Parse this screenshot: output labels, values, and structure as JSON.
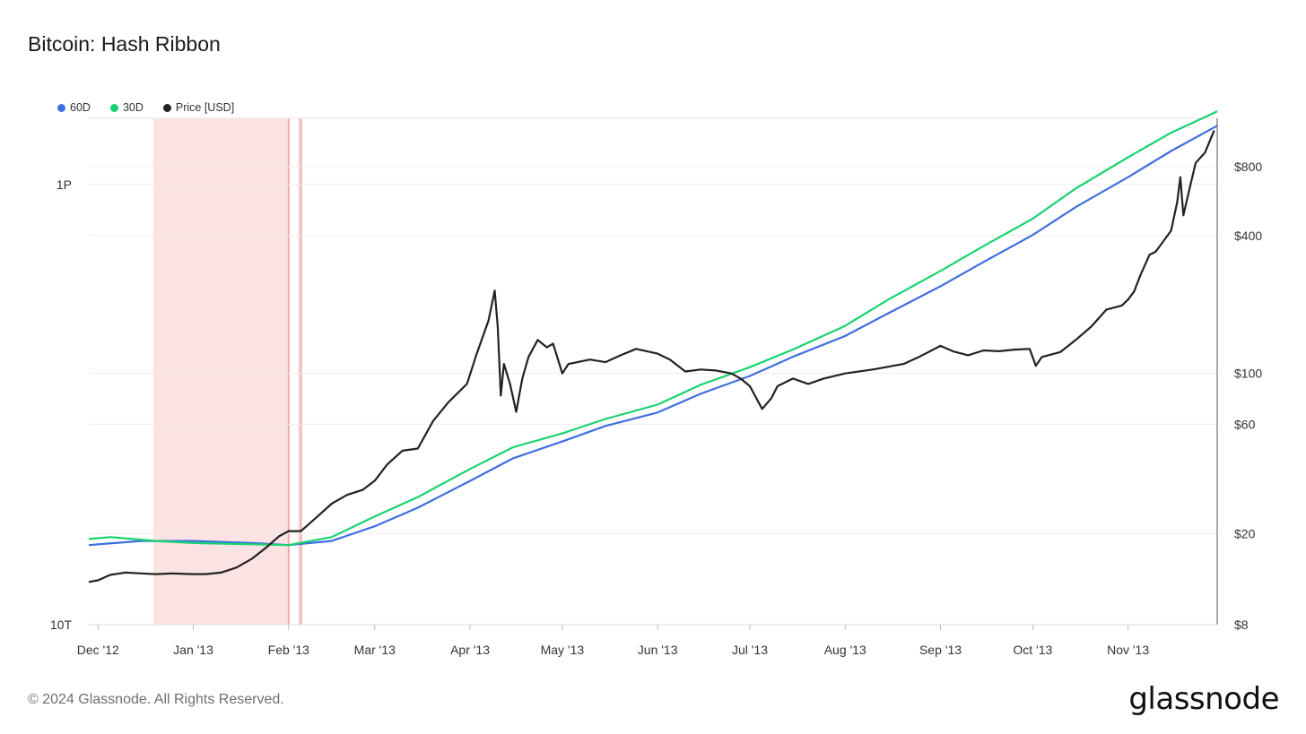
{
  "title": "Bitcoin: Hash Ribbon",
  "legend": [
    {
      "name": "60D",
      "color": "#3e6fe0"
    },
    {
      "name": "30D",
      "color": "#19d36f"
    },
    {
      "name": "Price [USD]",
      "color": "#222222"
    }
  ],
  "footer": {
    "copyright": "© 2024 Glassnode. All Rights Reserved.",
    "logo": "glassnode"
  },
  "chart_data": {
    "type": "line",
    "title": "Bitcoin: Hash Ribbon",
    "x_range": [
      "2012-11-28",
      "2013-11-30"
    ],
    "x_ticks": [
      {
        "date": "2012-12-01",
        "label": "Dec '12"
      },
      {
        "date": "2013-01-01",
        "label": "Jan '13"
      },
      {
        "date": "2013-02-01",
        "label": "Feb '13"
      },
      {
        "date": "2013-03-01",
        "label": "Mar '13"
      },
      {
        "date": "2013-04-01",
        "label": "Apr '13"
      },
      {
        "date": "2013-05-01",
        "label": "May '13"
      },
      {
        "date": "2013-06-01",
        "label": "Jun '13"
      },
      {
        "date": "2013-07-01",
        "label": "Jul '13"
      },
      {
        "date": "2013-08-01",
        "label": "Aug '13"
      },
      {
        "date": "2013-09-01",
        "label": "Sep '13"
      },
      {
        "date": "2013-10-01",
        "label": "Oct '13"
      },
      {
        "date": "2013-11-01",
        "label": "Nov '13"
      }
    ],
    "left_axis": {
      "scale": "log",
      "range": [
        10,
        2000
      ],
      "unit": "TH/s",
      "ticks": [
        {
          "value": 10,
          "label": "10T"
        },
        {
          "value": 1000,
          "label": "1P"
        }
      ]
    },
    "right_axis": {
      "scale": "log",
      "range": [
        8,
        1300
      ],
      "ticks": [
        {
          "value": 8,
          "label": "$8"
        },
        {
          "value": 20,
          "label": "$20"
        },
        {
          "value": 60,
          "label": "$60"
        },
        {
          "value": 100,
          "label": "$100"
        },
        {
          "value": 400,
          "label": "$400"
        },
        {
          "value": 800,
          "label": "$800"
        }
      ]
    },
    "capitulation_bands": [
      {
        "start": "2012-12-19",
        "end": "2013-02-01"
      },
      {
        "start": "2013-02-04",
        "end": "2013-02-05"
      }
    ],
    "series": [
      {
        "name": "60D",
        "axis": "left",
        "color": "#3e6fe0",
        "points": [
          [
            "2012-11-28",
            23
          ],
          [
            "2012-12-15",
            24
          ],
          [
            "2013-01-01",
            24
          ],
          [
            "2013-01-20",
            23.5
          ],
          [
            "2013-02-01",
            23
          ],
          [
            "2013-02-15",
            24
          ],
          [
            "2013-03-01",
            28
          ],
          [
            "2013-03-15",
            34
          ],
          [
            "2013-04-01",
            45
          ],
          [
            "2013-04-15",
            57
          ],
          [
            "2013-05-01",
            68
          ],
          [
            "2013-05-15",
            80
          ],
          [
            "2013-06-01",
            92
          ],
          [
            "2013-06-15",
            112
          ],
          [
            "2013-07-01",
            135
          ],
          [
            "2013-07-15",
            165
          ],
          [
            "2013-08-01",
            205
          ],
          [
            "2013-08-15",
            260
          ],
          [
            "2013-09-01",
            345
          ],
          [
            "2013-09-15",
            445
          ],
          [
            "2013-10-01",
            590
          ],
          [
            "2013-10-15",
            790
          ],
          [
            "2013-11-01",
            1080
          ],
          [
            "2013-11-15",
            1420
          ],
          [
            "2013-11-30",
            1850
          ]
        ]
      },
      {
        "name": "30D",
        "axis": "left",
        "color": "#19d36f",
        "points": [
          [
            "2012-11-28",
            24.5
          ],
          [
            "2012-12-05",
            25
          ],
          [
            "2012-12-20",
            24
          ],
          [
            "2013-01-01",
            23.5
          ],
          [
            "2013-01-20",
            23.2
          ],
          [
            "2013-02-01",
            23
          ],
          [
            "2013-02-15",
            25
          ],
          [
            "2013-03-01",
            31
          ],
          [
            "2013-03-15",
            38
          ],
          [
            "2013-04-01",
            51
          ],
          [
            "2013-04-15",
            64
          ],
          [
            "2013-05-01",
            74
          ],
          [
            "2013-05-15",
            86
          ],
          [
            "2013-06-01",
            100
          ],
          [
            "2013-06-15",
            123
          ],
          [
            "2013-07-01",
            148
          ],
          [
            "2013-07-15",
            178
          ],
          [
            "2013-08-01",
            228
          ],
          [
            "2013-08-15",
            300
          ],
          [
            "2013-09-01",
            405
          ],
          [
            "2013-09-15",
            525
          ],
          [
            "2013-10-01",
            700
          ],
          [
            "2013-10-15",
            960
          ],
          [
            "2013-11-01",
            1330
          ],
          [
            "2013-11-15",
            1720
          ],
          [
            "2013-11-30",
            2150
          ]
        ]
      },
      {
        "name": "Price [USD]",
        "axis": "right",
        "color": "#222222",
        "points": [
          [
            "2012-11-28",
            12.3
          ],
          [
            "2012-12-01",
            12.5
          ],
          [
            "2012-12-05",
            13.2
          ],
          [
            "2012-12-10",
            13.5
          ],
          [
            "2012-12-15",
            13.4
          ],
          [
            "2012-12-20",
            13.3
          ],
          [
            "2012-12-25",
            13.4
          ],
          [
            "2013-01-01",
            13.3
          ],
          [
            "2013-01-05",
            13.3
          ],
          [
            "2013-01-10",
            13.5
          ],
          [
            "2013-01-15",
            14.2
          ],
          [
            "2013-01-20",
            15.5
          ],
          [
            "2013-01-25",
            17.5
          ],
          [
            "2013-01-29",
            19.5
          ],
          [
            "2013-02-01",
            20.5
          ],
          [
            "2013-02-05",
            20.5
          ],
          [
            "2013-02-10",
            23.5
          ],
          [
            "2013-02-15",
            27
          ],
          [
            "2013-02-20",
            29.5
          ],
          [
            "2013-02-25",
            31
          ],
          [
            "2013-03-01",
            34
          ],
          [
            "2013-03-05",
            40
          ],
          [
            "2013-03-10",
            46
          ],
          [
            "2013-03-15",
            47
          ],
          [
            "2013-03-20",
            62
          ],
          [
            "2013-03-25",
            75
          ],
          [
            "2013-03-31",
            90
          ],
          [
            "2013-04-03",
            120
          ],
          [
            "2013-04-07",
            170
          ],
          [
            "2013-04-09",
            230
          ],
          [
            "2013-04-10",
            160
          ],
          [
            "2013-04-11",
            80
          ],
          [
            "2013-04-12",
            110
          ],
          [
            "2013-04-14",
            90
          ],
          [
            "2013-04-16",
            68
          ],
          [
            "2013-04-18",
            95
          ],
          [
            "2013-04-20",
            118
          ],
          [
            "2013-04-23",
            140
          ],
          [
            "2013-04-26",
            130
          ],
          [
            "2013-04-28",
            135
          ],
          [
            "2013-05-01",
            100
          ],
          [
            "2013-05-03",
            110
          ],
          [
            "2013-05-10",
            115
          ],
          [
            "2013-05-15",
            112
          ],
          [
            "2013-05-20",
            120
          ],
          [
            "2013-05-25",
            128
          ],
          [
            "2013-06-01",
            122
          ],
          [
            "2013-06-05",
            115
          ],
          [
            "2013-06-10",
            102
          ],
          [
            "2013-06-15",
            104
          ],
          [
            "2013-06-20",
            103
          ],
          [
            "2013-06-25",
            100
          ],
          [
            "2013-06-28",
            95
          ],
          [
            "2013-07-01",
            88
          ],
          [
            "2013-07-05",
            70
          ],
          [
            "2013-07-08",
            78
          ],
          [
            "2013-07-10",
            88
          ],
          [
            "2013-07-15",
            95
          ],
          [
            "2013-07-20",
            90
          ],
          [
            "2013-07-25",
            95
          ],
          [
            "2013-08-01",
            100
          ],
          [
            "2013-08-10",
            104
          ],
          [
            "2013-08-20",
            110
          ],
          [
            "2013-08-25",
            118
          ],
          [
            "2013-09-01",
            132
          ],
          [
            "2013-09-05",
            125
          ],
          [
            "2013-09-10",
            120
          ],
          [
            "2013-09-15",
            126
          ],
          [
            "2013-09-20",
            125
          ],
          [
            "2013-09-25",
            127
          ],
          [
            "2013-09-30",
            128
          ],
          [
            "2013-10-02",
            108
          ],
          [
            "2013-10-04",
            118
          ],
          [
            "2013-10-10",
            124
          ],
          [
            "2013-10-15",
            140
          ],
          [
            "2013-10-20",
            160
          ],
          [
            "2013-10-25",
            190
          ],
          [
            "2013-10-30",
            198
          ],
          [
            "2013-11-01",
            210
          ],
          [
            "2013-11-03",
            228
          ],
          [
            "2013-11-05",
            268
          ],
          [
            "2013-11-08",
            330
          ],
          [
            "2013-11-10",
            340
          ],
          [
            "2013-11-12",
            370
          ],
          [
            "2013-11-15",
            420
          ],
          [
            "2013-11-17",
            560
          ],
          [
            "2013-11-18",
            720
          ],
          [
            "2013-11-19",
            490
          ],
          [
            "2013-11-21",
            640
          ],
          [
            "2013-11-23",
            830
          ],
          [
            "2013-11-26",
            920
          ],
          [
            "2013-11-29",
            1150
          ]
        ]
      }
    ]
  }
}
